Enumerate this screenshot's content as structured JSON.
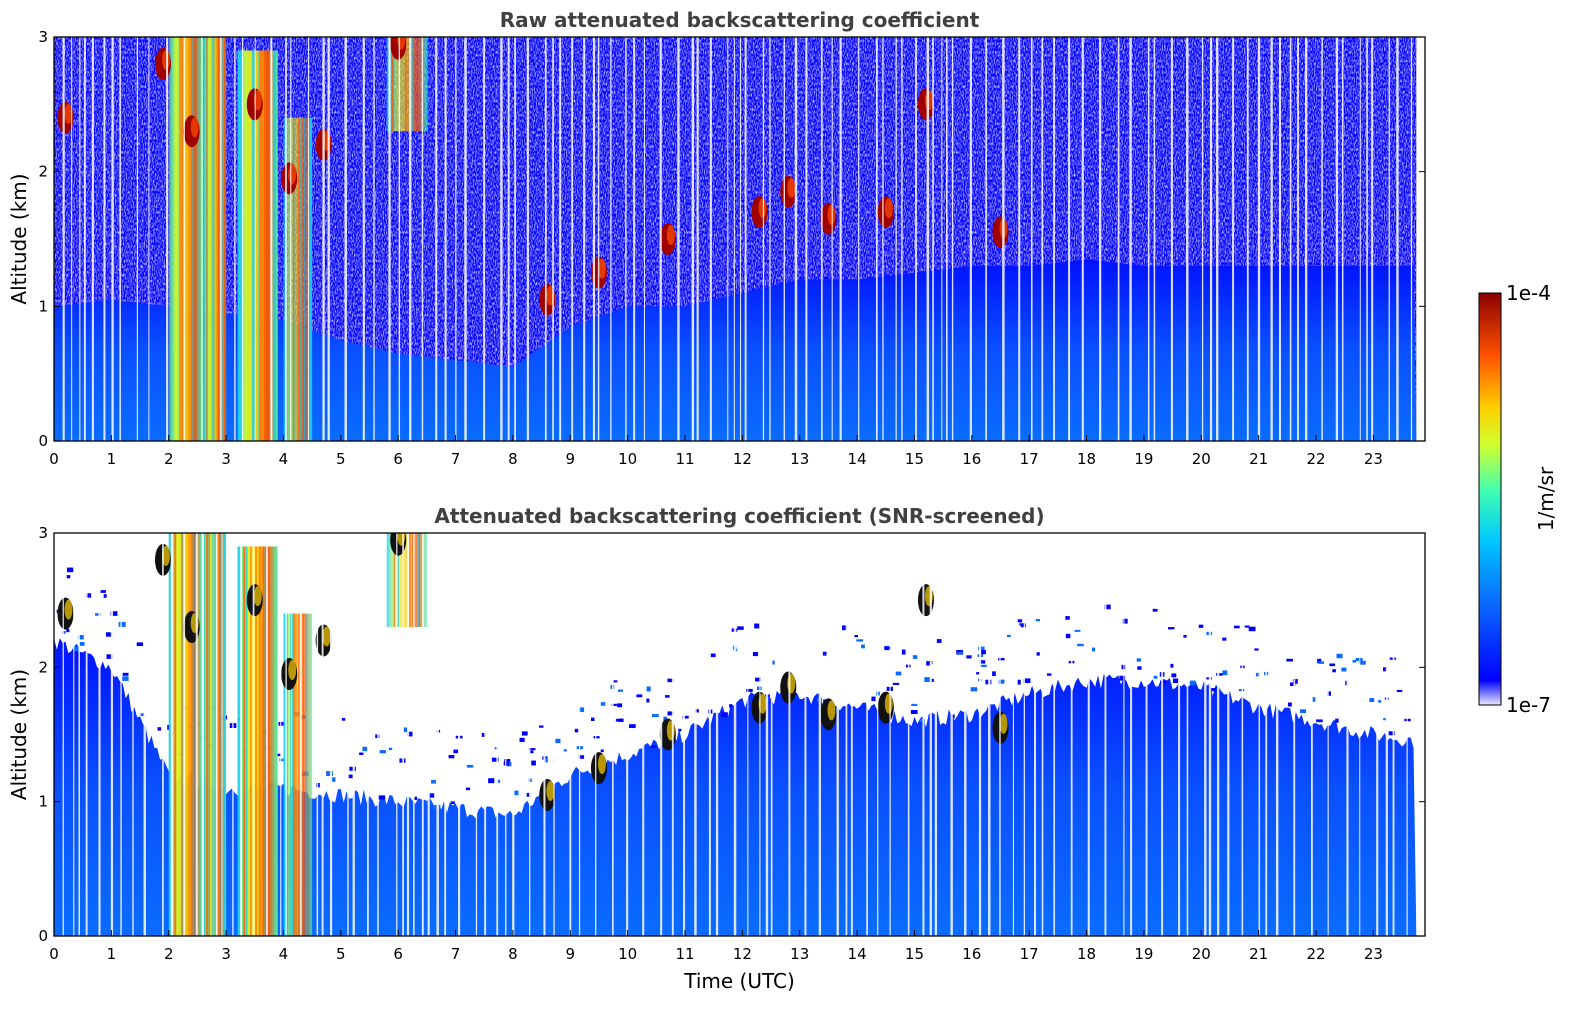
{
  "chart_data": [
    {
      "type": "heatmap",
      "title": "Raw attenuated backscattering coefficient",
      "xlabel": "",
      "ylabel": "Altitude (km)",
      "xlim": [
        0,
        23.9
      ],
      "ylim": [
        0,
        3
      ],
      "x_ticks": [
        "0",
        "1",
        "2",
        "3",
        "4",
        "5",
        "6",
        "7",
        "8",
        "9",
        "10",
        "11",
        "12",
        "13",
        "14",
        "15",
        "16",
        "17",
        "18",
        "19",
        "20",
        "21",
        "22",
        "23"
      ],
      "y_ticks": [
        "0",
        "1",
        "2",
        "3"
      ],
      "screened": false,
      "cloud_base_km": [
        [
          0,
          1.0
        ],
        [
          1,
          1.05
        ],
        [
          2,
          1.0
        ],
        [
          3,
          0.95
        ],
        [
          4,
          0.9
        ],
        [
          5,
          0.75
        ],
        [
          6,
          0.65
        ],
        [
          7,
          0.6
        ],
        [
          8,
          0.55
        ],
        [
          9,
          0.85
        ],
        [
          10,
          1.0
        ],
        [
          11,
          1.0
        ],
        [
          12,
          1.1
        ],
        [
          13,
          1.2
        ],
        [
          14,
          1.2
        ],
        [
          15,
          1.25
        ],
        [
          16,
          1.3
        ],
        [
          17,
          1.3
        ],
        [
          18,
          1.35
        ],
        [
          19,
          1.3
        ],
        [
          20,
          1.3
        ],
        [
          21,
          1.3
        ],
        [
          22,
          1.3
        ],
        [
          23,
          1.3
        ],
        [
          23.8,
          1.3
        ]
      ],
      "aerosol_layers": [
        {
          "t": [
            2.0,
            2.6
          ],
          "alt": [
            0,
            3.0
          ]
        },
        {
          "t": [
            2.6,
            3.0
          ],
          "alt": [
            0,
            3.0
          ]
        },
        {
          "t": [
            3.2,
            3.9
          ],
          "alt": [
            0,
            2.9
          ]
        },
        {
          "t": [
            4.0,
            4.5
          ],
          "alt": [
            0,
            2.4
          ]
        },
        {
          "t": [
            5.8,
            6.5
          ],
          "alt": [
            2.3,
            3.0
          ]
        }
      ],
      "cloud_patches": [
        {
          "t": 0.2,
          "alt": 2.4
        },
        {
          "t": 1.9,
          "alt": 2.8
        },
        {
          "t": 2.4,
          "alt": 2.3
        },
        {
          "t": 3.5,
          "alt": 2.5
        },
        {
          "t": 4.1,
          "alt": 1.95
        },
        {
          "t": 4.7,
          "alt": 2.2
        },
        {
          "t": 6.0,
          "alt": 2.95
        },
        {
          "t": 8.6,
          "alt": 1.05
        },
        {
          "t": 9.5,
          "alt": 1.25
        },
        {
          "t": 10.7,
          "alt": 1.5
        },
        {
          "t": 12.3,
          "alt": 1.7
        },
        {
          "t": 12.8,
          "alt": 1.85
        },
        {
          "t": 13.5,
          "alt": 1.65
        },
        {
          "t": 14.5,
          "alt": 1.7
        },
        {
          "t": 15.2,
          "alt": 2.5
        },
        {
          "t": 16.5,
          "alt": 1.55
        }
      ]
    },
    {
      "type": "heatmap",
      "title": "Attenuated backscattering coefficient (SNR-screened)",
      "xlabel": "Time (UTC)",
      "ylabel": "Altitude (km)",
      "xlim": [
        0,
        23.9
      ],
      "ylim": [
        0,
        3
      ],
      "x_ticks": [
        "0",
        "1",
        "2",
        "3",
        "4",
        "5",
        "6",
        "7",
        "8",
        "9",
        "10",
        "11",
        "12",
        "13",
        "14",
        "15",
        "16",
        "17",
        "18",
        "19",
        "20",
        "21",
        "22",
        "23"
      ],
      "y_ticks": [
        "0",
        "1",
        "2",
        "3"
      ],
      "screened": true,
      "layer_top_km": [
        [
          0,
          2.2
        ],
        [
          1,
          2.0
        ],
        [
          2,
          1.2
        ],
        [
          3,
          1.1
        ],
        [
          4,
          1.1
        ],
        [
          5,
          1.05
        ],
        [
          6,
          1.0
        ],
        [
          7,
          0.95
        ],
        [
          8,
          0.9
        ],
        [
          9,
          1.2
        ],
        [
          10,
          1.35
        ],
        [
          11,
          1.5
        ],
        [
          12,
          1.75
        ],
        [
          13,
          1.8
        ],
        [
          14,
          1.7
        ],
        [
          15,
          1.6
        ],
        [
          16,
          1.65
        ],
        [
          17,
          1.8
        ],
        [
          18,
          1.9
        ],
        [
          19,
          1.9
        ],
        [
          20,
          1.85
        ],
        [
          21,
          1.7
        ],
        [
          22,
          1.6
        ],
        [
          23,
          1.5
        ],
        [
          23.8,
          1.45
        ]
      ]
    }
  ],
  "colorbar": {
    "label": "1/m/sr",
    "max_label": "1e-4",
    "min_label": "1e-7",
    "scale": "log",
    "colormap": [
      "#e8e8ff",
      "#0000ff",
      "#0a6cff",
      "#00c8ff",
      "#40ffb0",
      "#d0ff30",
      "#ffd000",
      "#ff5000",
      "#8b0000"
    ]
  }
}
